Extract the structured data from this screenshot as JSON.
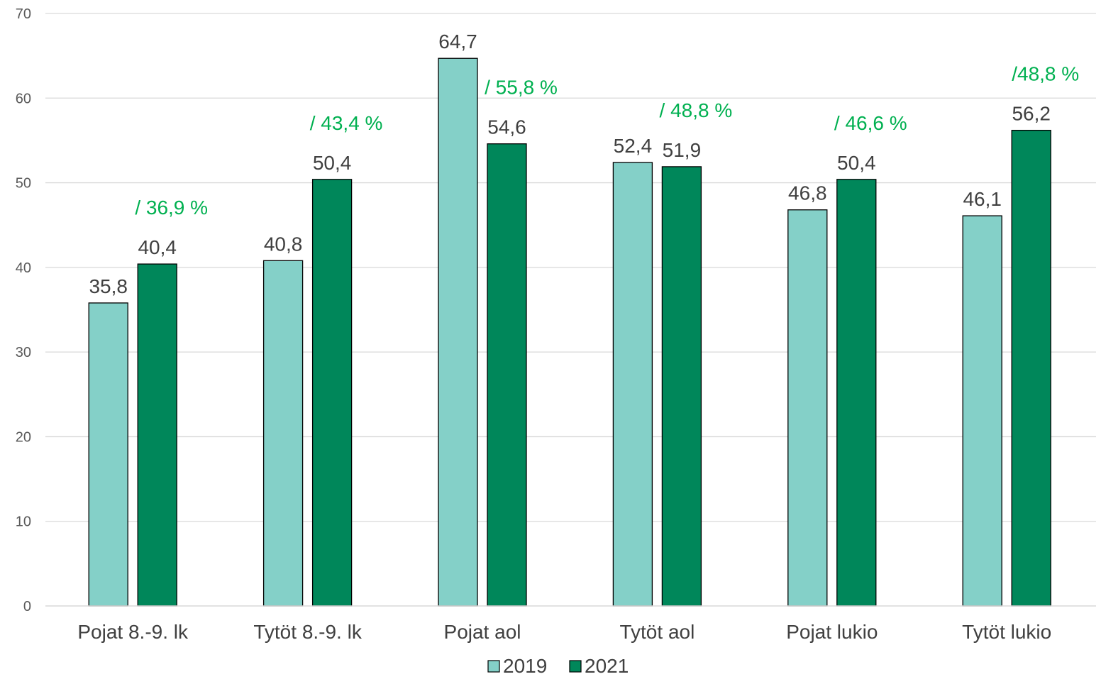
{
  "chart_data": {
    "type": "bar",
    "categories": [
      "Pojat 8.-9. lk",
      "Tytöt 8.-9. lk",
      "Pojat aol",
      "Tytöt aol",
      "Pojat lukio",
      "Tytöt  lukio"
    ],
    "series": [
      {
        "name": "2019",
        "values": [
          35.8,
          40.8,
          64.7,
          52.4,
          46.8,
          46.1
        ],
        "labels": [
          "35,8",
          "40,8",
          "64,7",
          "52,4",
          "46,8",
          "46,1"
        ],
        "color": "#84D0C8"
      },
      {
        "name": "2021",
        "values": [
          40.4,
          50.4,
          54.6,
          51.9,
          50.4,
          56.2
        ],
        "labels": [
          "40,4",
          "50,4",
          "54,6",
          "51,9",
          "50,4",
          "56,2"
        ],
        "color": "#00875A"
      }
    ],
    "annotations": [
      "/ 36,9 %",
      "/ 43,4 %",
      "/ 55,8 %",
      "/ 48,8 %",
      "/ 46,6 %",
      "/48,8 %"
    ],
    "annotation_color": "#00B050",
    "yticks": [
      "0",
      "10",
      "20",
      "30",
      "40",
      "50",
      "60",
      "70"
    ],
    "ylim": [
      0,
      70
    ],
    "grid": true,
    "legend_position": "bottom",
    "title": "",
    "xlabel": "",
    "ylabel": ""
  }
}
